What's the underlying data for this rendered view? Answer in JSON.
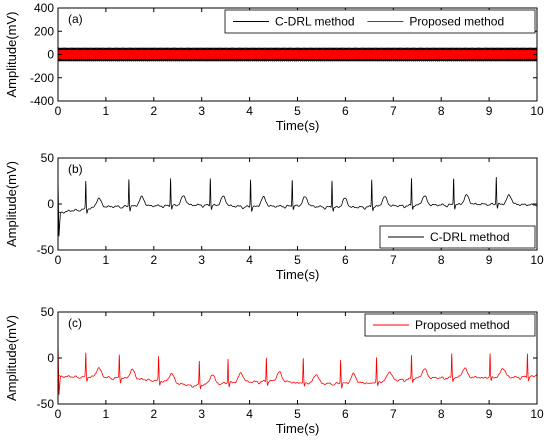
{
  "chart_data": [
    {
      "type": "line",
      "panel_label": "(a)",
      "xlabel": "Time(s)",
      "ylabel": "Amplitude(mV)",
      "xlim": [
        0,
        10
      ],
      "ylim": [
        -400,
        400
      ],
      "x_ticks": [
        "0",
        "1",
        "2",
        "3",
        "4",
        "5",
        "6",
        "7",
        "8",
        "9",
        "10"
      ],
      "y_ticks": [
        "-400",
        "-200",
        "0",
        "200",
        "400"
      ],
      "legend_position": "top-right",
      "series": [
        {
          "name": "C-DRL method",
          "color": "#000000",
          "kind": "band",
          "band_low": -60,
          "band_high": 60
        },
        {
          "name": "Proposed method",
          "color": "#ff0000",
          "kind": "band",
          "band_low": -40,
          "band_high": 40
        }
      ]
    },
    {
      "type": "line",
      "panel_label": "(b)",
      "xlabel": "Time(s)",
      "ylabel": "Amplitude(mV)",
      "xlim": [
        0,
        10
      ],
      "ylim": [
        -50,
        50
      ],
      "x_ticks": [
        "0",
        "1",
        "2",
        "3",
        "4",
        "5",
        "6",
        "7",
        "8",
        "9",
        "10"
      ],
      "y_ticks": [
        "-50",
        "0",
        "50"
      ],
      "legend_position": "bottom-right",
      "series": [
        {
          "name": "C-DRL method",
          "color": "#000000",
          "kind": "ecg",
          "baseline": [
            [
              0,
              -10
            ],
            [
              0.3,
              -7
            ],
            [
              1,
              -3
            ],
            [
              2,
              -2
            ],
            [
              3,
              -1
            ],
            [
              4,
              -3
            ],
            [
              5,
              -2
            ],
            [
              6,
              -4
            ],
            [
              7,
              -2
            ],
            [
              8,
              -1
            ],
            [
              9,
              0
            ],
            [
              10,
              -1
            ]
          ],
          "beats": [
            0.58,
            1.48,
            2.35,
            3.18,
            4.02,
            4.89,
            5.72,
            6.55,
            7.38,
            8.26,
            9.15
          ],
          "r_amp": 30,
          "t_amp": 10,
          "start_spike": {
            "x": 0.02,
            "high": 28,
            "low": -35
          }
        }
      ]
    },
    {
      "type": "line",
      "panel_label": "(c)",
      "xlabel": "Time(s)",
      "ylabel": "Amplitude(mV)",
      "xlim": [
        0,
        10
      ],
      "ylim": [
        -50,
        50
      ],
      "x_ticks": [
        "0",
        "1",
        "2",
        "3",
        "4",
        "5",
        "6",
        "7",
        "8",
        "9",
        "10"
      ],
      "y_ticks": [
        "-50",
        "0",
        "50"
      ],
      "legend_position": "top-right",
      "series": [
        {
          "name": "Proposed method",
          "color": "#ff0000",
          "kind": "ecg",
          "baseline": [
            [
              0,
              -20
            ],
            [
              1,
              -21
            ],
            [
              2,
              -24
            ],
            [
              2.8,
              -30
            ],
            [
              3.5,
              -27
            ],
            [
              4.5,
              -25
            ],
            [
              5.5,
              -28
            ],
            [
              6.5,
              -27
            ],
            [
              7.5,
              -22
            ],
            [
              8.5,
              -21
            ],
            [
              9.5,
              -21
            ],
            [
              10,
              -20
            ]
          ],
          "beats": [
            0.58,
            1.28,
            2.1,
            2.95,
            3.55,
            4.35,
            5.12,
            5.9,
            6.65,
            7.38,
            8.22,
            9.02,
            9.8
          ],
          "r_amp": 26,
          "t_amp": 10,
          "start_spike": {
            "x": 0.02,
            "high": 20,
            "low": -40
          }
        }
      ]
    }
  ]
}
